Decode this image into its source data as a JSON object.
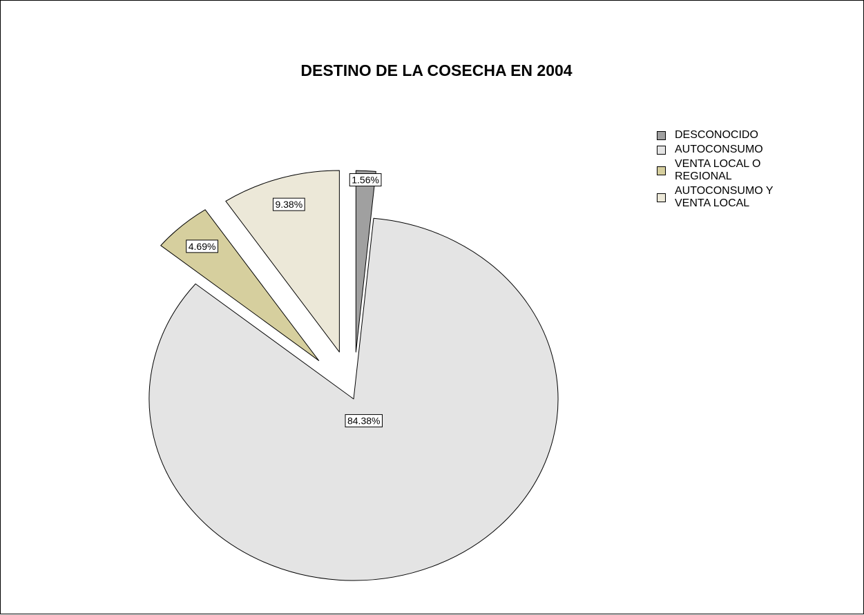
{
  "chart_data": {
    "type": "pie",
    "title": "DESTINO DE LA COSECHA EN 2004",
    "legend_position": "right",
    "slices": [
      {
        "label": "DESCONOCIDO",
        "value": 1.56,
        "data_label": "1.56%",
        "color": "#a0a0a0"
      },
      {
        "label": "AUTOCONSUMO",
        "value": 84.38,
        "data_label": "84.38%",
        "color": "#e4e4e4"
      },
      {
        "label": "VENTA LOCAL O REGIONAL",
        "value": 4.69,
        "data_label": "4.69%",
        "color": "#d6cf9e"
      },
      {
        "label": "AUTOCONSUMO Y VENTA LOCAL",
        "value": 9.38,
        "data_label": "9.38%",
        "color": "#ece8d8"
      }
    ]
  }
}
